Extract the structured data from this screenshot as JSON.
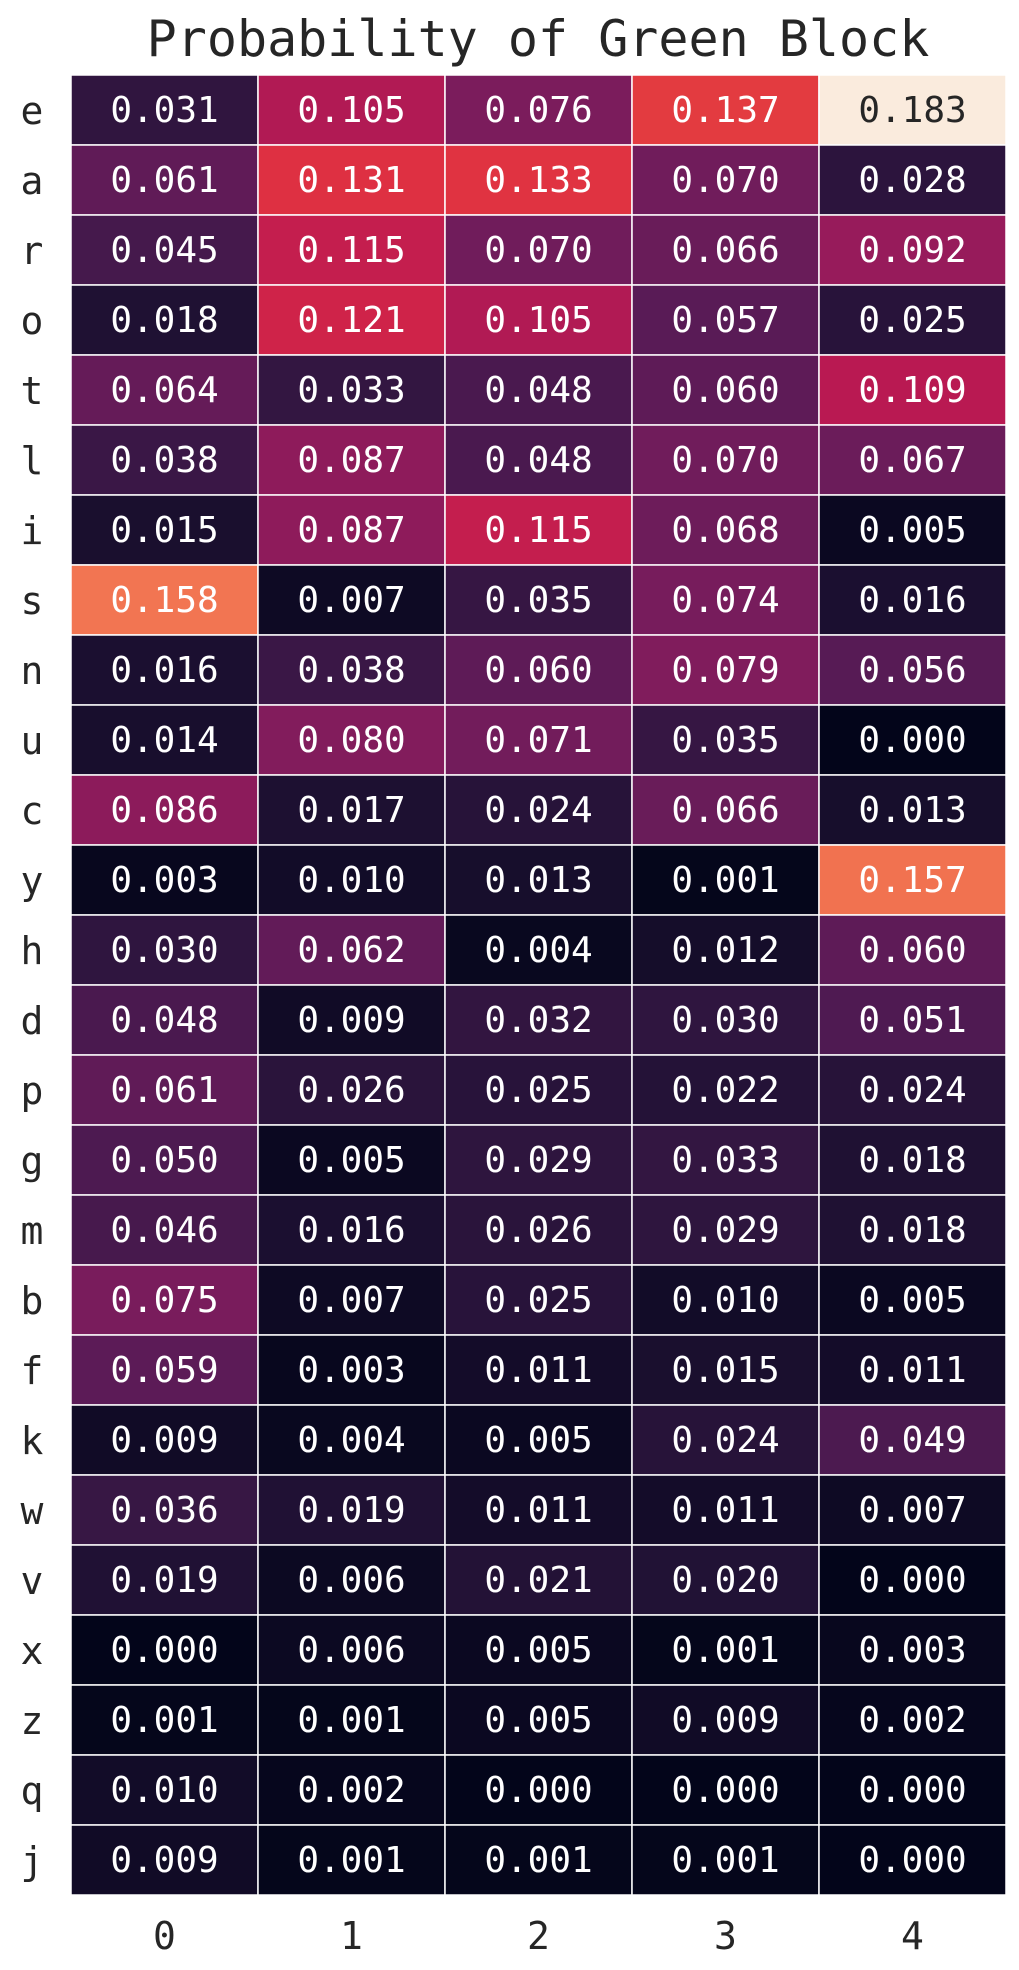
{
  "chart_data": {
    "type": "heatmap",
    "title": "Probability of Green Block",
    "xlabel": "",
    "ylabel": "",
    "x_categories": [
      "0",
      "1",
      "2",
      "3",
      "4"
    ],
    "y_categories": [
      "e",
      "a",
      "r",
      "o",
      "t",
      "l",
      "i",
      "s",
      "n",
      "u",
      "c",
      "y",
      "h",
      "d",
      "p",
      "g",
      "m",
      "b",
      "f",
      "k",
      "w",
      "v",
      "x",
      "z",
      "q",
      "j"
    ],
    "values": [
      [
        0.031,
        0.105,
        0.076,
        0.137,
        0.183
      ],
      [
        0.061,
        0.131,
        0.133,
        0.07,
        0.028
      ],
      [
        0.045,
        0.115,
        0.07,
        0.066,
        0.092
      ],
      [
        0.018,
        0.121,
        0.105,
        0.057,
        0.025
      ],
      [
        0.064,
        0.033,
        0.048,
        0.06,
        0.109
      ],
      [
        0.038,
        0.087,
        0.048,
        0.07,
        0.067
      ],
      [
        0.015,
        0.087,
        0.115,
        0.068,
        0.005
      ],
      [
        0.158,
        0.007,
        0.035,
        0.074,
        0.016
      ],
      [
        0.016,
        0.038,
        0.06,
        0.079,
        0.056
      ],
      [
        0.014,
        0.08,
        0.071,
        0.035,
        0.0
      ],
      [
        0.086,
        0.017,
        0.024,
        0.066,
        0.013
      ],
      [
        0.003,
        0.01,
        0.013,
        0.001,
        0.157
      ],
      [
        0.03,
        0.062,
        0.004,
        0.012,
        0.06
      ],
      [
        0.048,
        0.009,
        0.032,
        0.03,
        0.051
      ],
      [
        0.061,
        0.026,
        0.025,
        0.022,
        0.024
      ],
      [
        0.05,
        0.005,
        0.029,
        0.033,
        0.018
      ],
      [
        0.046,
        0.016,
        0.026,
        0.029,
        0.018
      ],
      [
        0.075,
        0.007,
        0.025,
        0.01,
        0.005
      ],
      [
        0.059,
        0.003,
        0.011,
        0.015,
        0.011
      ],
      [
        0.009,
        0.004,
        0.005,
        0.024,
        0.049
      ],
      [
        0.036,
        0.019,
        0.011,
        0.011,
        0.007
      ],
      [
        0.019,
        0.006,
        0.021,
        0.02,
        0.0
      ],
      [
        0.0,
        0.006,
        0.005,
        0.001,
        0.003
      ],
      [
        0.001,
        0.001,
        0.005,
        0.009,
        0.002
      ],
      [
        0.01,
        0.002,
        0.0,
        0.0,
        0.0
      ],
      [
        0.009,
        0.001,
        0.001,
        0.001,
        0.0
      ]
    ],
    "value_format": "0.000",
    "colormap": "rocket",
    "vmin": 0.0,
    "vmax": 0.183,
    "annotations": true,
    "cell_border_color": "#ffffff",
    "colorbar": false
  }
}
